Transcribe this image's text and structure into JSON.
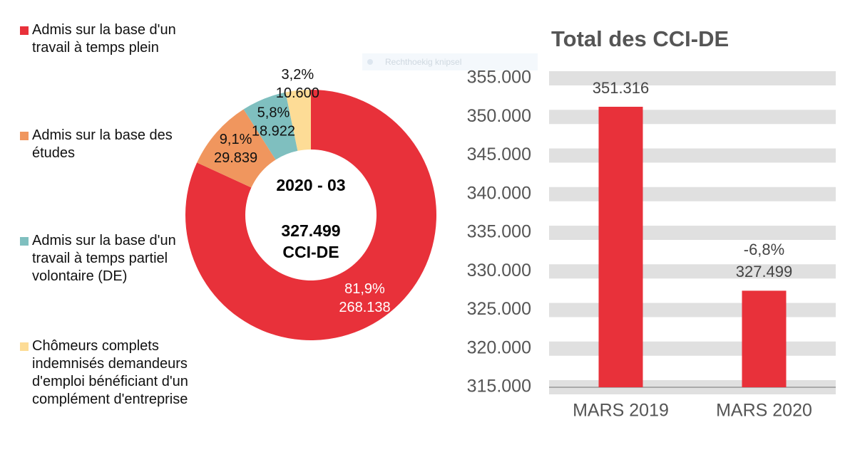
{
  "chart_data": [
    {
      "type": "donut",
      "categories": [
        "Admis sur la base d'un travail à temps plein",
        "Admis sur la base des études",
        "Admis sur la base d'un travail à temps partiel volontaire (DE)",
        "Chômeurs complets indemnisés demandeurs d'emploi bénéficiant d'un complément d'entreprise"
      ],
      "values": [
        268138,
        29839,
        18922,
        10600
      ],
      "value_labels": [
        "268.138",
        "29.839",
        "18.922",
        "10.600"
      ],
      "percent_labels": [
        "81,9%",
        "9,1%",
        "5,8%",
        "3,2%"
      ],
      "colors": [
        "#e8313a",
        "#f0965e",
        "#7fbfbf",
        "#fddc96"
      ],
      "center_title": "2020 - 03",
      "center_value": "327.499",
      "center_unit": "CCI-DE",
      "overlay_label": "Rechthoekig knipsel"
    },
    {
      "type": "bar",
      "title": "Total des CCI-DE",
      "categories": [
        "MARS 2019",
        "MARS 2020"
      ],
      "values": [
        351316,
        327499
      ],
      "value_labels": [
        "351.316",
        "327.499"
      ],
      "change_label": "-6,8%",
      "color": "#e8313a",
      "ylim": [
        315000,
        355000
      ],
      "yticks": [
        {
          "value": 315000,
          "label": "315.000"
        },
        {
          "value": 320000,
          "label": "320.000"
        },
        {
          "value": 325000,
          "label": "325.000"
        },
        {
          "value": 330000,
          "label": "330.000"
        },
        {
          "value": 335000,
          "label": "335.000"
        },
        {
          "value": 340000,
          "label": "340.000"
        },
        {
          "value": 345000,
          "label": "345.000"
        },
        {
          "value": 350000,
          "label": "350.000"
        },
        {
          "value": 355000,
          "label": "355.000"
        }
      ],
      "grid": true
    }
  ]
}
